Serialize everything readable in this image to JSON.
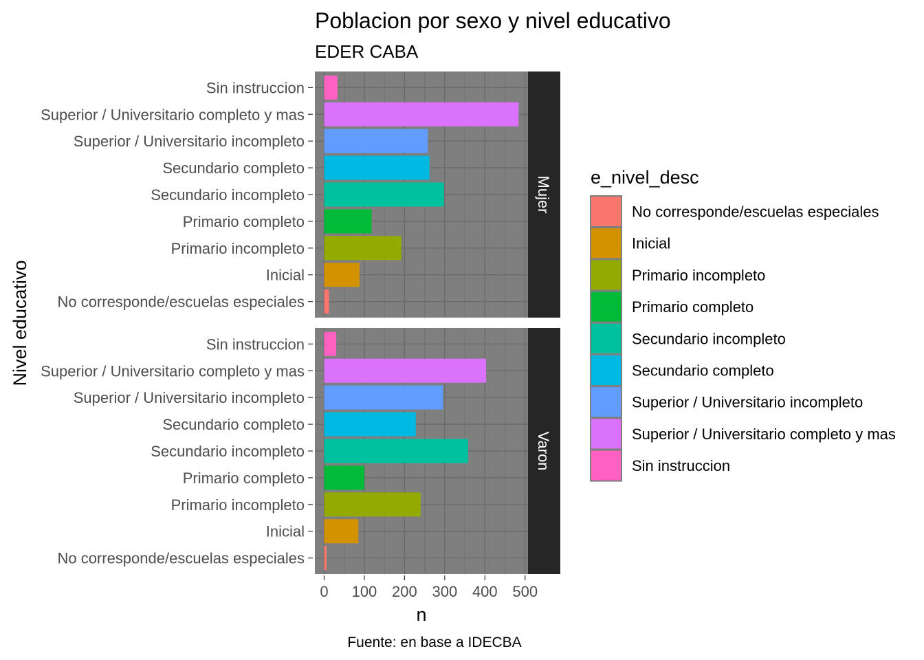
{
  "chart_data": {
    "type": "bar",
    "orientation": "horizontal",
    "title": "Poblacion por sexo y nivel educativo",
    "subtitle": "EDER CABA",
    "xlabel": "n",
    "ylabel": "Nivel educativo",
    "caption": "Fuente: en base a IDECBA",
    "xlim": [
      0,
      590
    ],
    "x_ticks": [
      0,
      100,
      200,
      300,
      400,
      500
    ],
    "grid": true,
    "categories": [
      "No corresponde/escuelas especiales",
      "Inicial",
      "Primario incompleto",
      "Primario completo",
      "Secundario incompleto",
      "Secundario completo",
      "Superior / Universitario incompleto",
      "Superior / Universitario completo y mas",
      "Sin instruccion"
    ],
    "colors": [
      "#F8766D",
      "#D39200",
      "#93AA00",
      "#00BA38",
      "#00C19F",
      "#00B9E3",
      "#619CFF",
      "#DB72FB",
      "#FF61C3"
    ],
    "facets": [
      {
        "name": "Mujer",
        "values": [
          12,
          88,
          192,
          118,
          298,
          262,
          258,
          484,
          33
        ]
      },
      {
        "name": "Varon",
        "values": [
          6,
          85,
          240,
          100,
          358,
          228,
          296,
          403,
          30
        ]
      }
    ],
    "legend": {
      "title": "e_nivel_desc",
      "placement": "right"
    }
  }
}
